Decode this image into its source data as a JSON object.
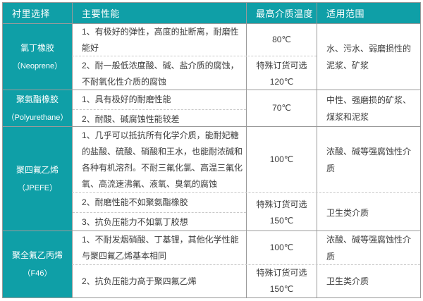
{
  "colors": {
    "teal": "#0f9fa7",
    "border": "#9a9a9a",
    "dashed": "#c9c9c9",
    "text": "#3c3c3c"
  },
  "header": {
    "lining": "衬里选择",
    "performance": "主要性能",
    "max_temp": "最高介质温度",
    "scope": "适用范围"
  },
  "rows": [
    {
      "material": {
        "name": "氯丁橡胶",
        "code": "（Neoprene）"
      },
      "performance": {
        "item1": "1、有极好的弹性，高度的扯断离，耐磨性能好",
        "item2": "2、耐一般低浓度酸、碱、盐介质的腐蚀，不耐氧化性介质的腐蚀"
      },
      "temperature": {
        "t1": "80℃",
        "t2_note": "特殊订货可选",
        "t2": "120℃"
      },
      "scope": {
        "s1": "水、污水、弱磨损性的泥浆、矿浆"
      }
    },
    {
      "material": {
        "name": "聚氨酯橡胶",
        "code": "（Polyurethane）"
      },
      "performance": {
        "item1": "1、具有极好的耐磨性能",
        "item2": "2、耐酸、碱腐蚀性能较差"
      },
      "temperature": {
        "t1": "70℃"
      },
      "scope": {
        "s1": "中性、强磨损的矿浆、煤浆和泥浆"
      }
    },
    {
      "material": {
        "name": "聚四氟乙烯",
        "code": "（JPEFE）"
      },
      "performance": {
        "item1": "1、几乎可以抵抗所有化学介质，能耐妃糖的盐酸、硫酸、硝酸和王水，也能耐浓碱和各种有机溶剂。不耐三氟化氯、高温三氟化氧、高流速沸氟、液氧、臭氧的腐蚀",
        "item2": "2、耐磨性能不如聚氨酯橡胶",
        "item3": "3、抗负压能力不如氯丁胶想"
      },
      "temperature": {
        "t1": "100℃",
        "t2_note": "特殊订货可选",
        "t2": "150℃"
      },
      "scope": {
        "s1": "浓酸、碱等强腐蚀性介质",
        "s2": "卫生类介质"
      }
    },
    {
      "material": {
        "name": "聚全氟乙丙烯",
        "code": "（F46）"
      },
      "performance": {
        "item1": "1、不耐发烟硝酸、丁基锂，其他化学性能与聚四氟乙烯基本相同",
        "item2": "2、抗负压能力高于聚四氟乙烯"
      },
      "temperature": {
        "t1": "100℃",
        "t2_note": "特殊订货可选",
        "t2": "150℃"
      },
      "scope": {
        "s1": "浓酸、碱等强腐蚀性介质",
        "s2": "卫生类介质"
      }
    }
  ]
}
